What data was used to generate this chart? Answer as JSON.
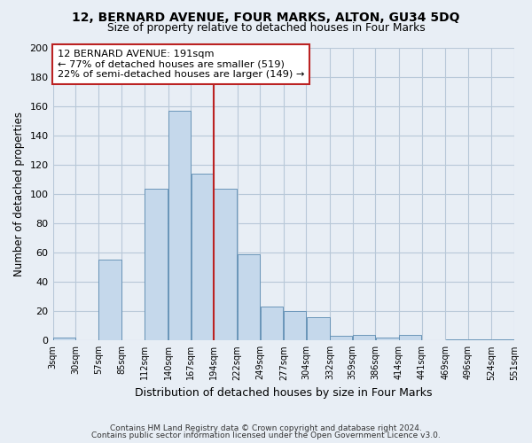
{
  "title1": "12, BERNARD AVENUE, FOUR MARKS, ALTON, GU34 5DQ",
  "title2": "Size of property relative to detached houses in Four Marks",
  "xlabel": "Distribution of detached houses by size in Four Marks",
  "ylabel": "Number of detached properties",
  "bin_edges": [
    3,
    30,
    57,
    85,
    112,
    140,
    167,
    194,
    222,
    249,
    277,
    304,
    332,
    359,
    386,
    414,
    441,
    469,
    496,
    524,
    551
  ],
  "bar_heights": [
    2,
    0,
    55,
    0,
    104,
    157,
    114,
    104,
    59,
    23,
    20,
    16,
    3,
    4,
    2,
    4,
    0,
    1,
    1,
    1
  ],
  "bar_color": "#c5d8eb",
  "bar_edgecolor": "#5a8ab0",
  "tick_labels": [
    "3sqm",
    "30sqm",
    "57sqm",
    "85sqm",
    "112sqm",
    "140sqm",
    "167sqm",
    "194sqm",
    "222sqm",
    "249sqm",
    "277sqm",
    "304sqm",
    "332sqm",
    "359sqm",
    "386sqm",
    "414sqm",
    "441sqm",
    "469sqm",
    "496sqm",
    "524sqm",
    "551sqm"
  ],
  "vline_x": 194,
  "vline_color": "#bb2222",
  "ylim": [
    0,
    200
  ],
  "yticks": [
    0,
    20,
    40,
    60,
    80,
    100,
    120,
    140,
    160,
    180,
    200
  ],
  "annotation_title": "12 BERNARD AVENUE: 191sqm",
  "annotation_line1": "← 77% of detached houses are smaller (519)",
  "annotation_line2": "22% of semi-detached houses are larger (149) →",
  "footer1": "Contains HM Land Registry data © Crown copyright and database right 2024.",
  "footer2": "Contains public sector information licensed under the Open Government Licence v3.0.",
  "bg_color": "#e8eef5",
  "plot_bg_color": "#e8eef5",
  "grid_color": "#b8c8d8",
  "ann_box_color": "#ffffff"
}
